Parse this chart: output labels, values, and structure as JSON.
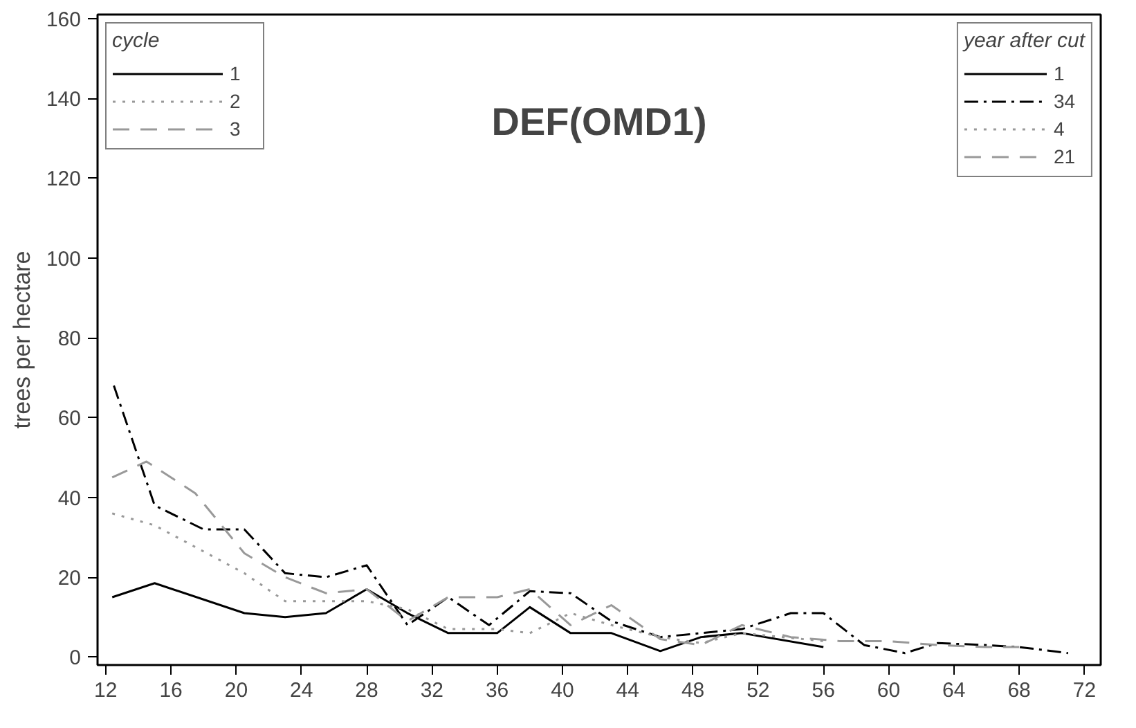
{
  "chart_data": {
    "type": "line",
    "title": "DEF(OMD1)",
    "ylabel": "trees per hectare",
    "legend_title": "year after cut",
    "legend": "top right",
    "annotations": [
      "cycle",
      "1",
      "2",
      "3"
    ],
    "xlim": [
      11.5,
      73
    ],
    "ylim": [
      -2,
      161
    ],
    "xticks": [
      12,
      16,
      20,
      24,
      28,
      32,
      36,
      40,
      44,
      48,
      52,
      56,
      60,
      64,
      68,
      72
    ],
    "yticks": [
      0,
      20,
      40,
      60,
      80,
      100,
      120,
      140,
      160
    ],
    "grid": false,
    "series": [
      {
        "name": "1",
        "color": "#000000",
        "line_style": "solid",
        "x": [
          12.4,
          15,
          20.5,
          23,
          25.5,
          28,
          30.5,
          33,
          36,
          38,
          40.5,
          43,
          46,
          48.5,
          51,
          56
        ],
        "values": [
          15,
          18.5,
          11,
          10,
          11,
          17,
          11,
          6,
          6,
          12.5,
          6,
          6,
          1.5,
          5,
          6,
          2.5
        ]
      },
      {
        "name": "34",
        "color": "#000000",
        "line_style": "dashdot",
        "x": [
          12.5,
          15,
          18,
          20.5,
          23,
          25.5,
          28,
          30.5,
          33,
          35.5,
          38,
          40.5,
          43,
          46,
          48.5,
          51,
          54,
          56,
          58.5,
          61,
          63,
          66,
          68,
          71
        ],
        "values": [
          68,
          38,
          32,
          32,
          21,
          20,
          23,
          8,
          15,
          8,
          16.5,
          16,
          9,
          5,
          6,
          7,
          11,
          11,
          3,
          1,
          3.5,
          3,
          2.5,
          1
        ]
      },
      {
        "name": "4",
        "color": "#999999",
        "line_style": "dotted",
        "x": [
          12.4,
          15,
          20.5,
          23,
          25.5,
          28,
          30.5,
          33,
          36,
          38,
          40.5,
          43,
          46,
          48.5,
          51,
          56
        ],
        "values": [
          36,
          33,
          21,
          14,
          14,
          14,
          12,
          7,
          7,
          6,
          11,
          8,
          5,
          3.5,
          6,
          4
        ]
      },
      {
        "name": "21",
        "color": "#999999",
        "line_style": "dashed",
        "x": [
          12.4,
          14.5,
          17.5,
          20.5,
          23,
          25.5,
          28,
          30.5,
          33,
          36,
          38,
          40.5,
          43,
          46,
          48.5,
          51,
          54,
          57,
          60,
          63,
          66,
          68
        ],
        "values": [
          45,
          49,
          41,
          26,
          20,
          16,
          17,
          9,
          15,
          15,
          17,
          8,
          13,
          4.5,
          3,
          8,
          5,
          4,
          4,
          3,
          2.5,
          2.5
        ]
      }
    ]
  }
}
